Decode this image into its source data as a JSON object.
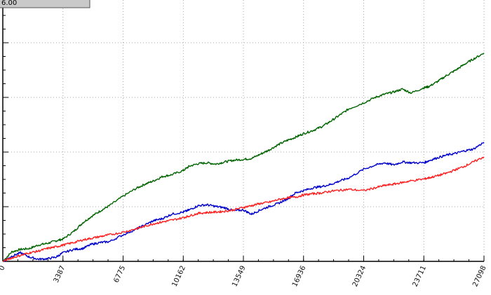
{
  "badge": {
    "text": "6.00"
  },
  "chart_data": {
    "type": "line",
    "title": "",
    "xlabel": "",
    "ylabel": "",
    "x_ticks": [
      0,
      3387,
      6775,
      10162,
      13549,
      16936,
      20324,
      23711,
      27098
    ],
    "xlim": [
      0,
      27098
    ],
    "ylim": [
      0,
      6.0
    ],
    "grid": true,
    "series": [
      {
        "color": "#006400",
        "x": [
          0,
          500,
          1000,
          1500,
          2000,
          2500,
          3000,
          3387,
          4000,
          4500,
          5000,
          5500,
          6000,
          6775,
          7500,
          8000,
          8500,
          9000,
          9500,
          10162,
          10500,
          11000,
          11500,
          12000,
          12500,
          13000,
          13549,
          14000,
          14500,
          15000,
          15500,
          16000,
          16500,
          16936,
          17500,
          18000,
          18500,
          19000,
          19500,
          20324,
          21000,
          21500,
          22000,
          22500,
          23000,
          23711,
          24000,
          24500,
          25000,
          25500,
          26000,
          26500,
          27098
        ],
        "values": [
          0.0,
          0.22,
          0.28,
          0.3,
          0.38,
          0.42,
          0.48,
          0.52,
          0.7,
          0.9,
          1.05,
          1.18,
          1.3,
          1.52,
          1.7,
          1.8,
          1.88,
          1.98,
          2.02,
          2.12,
          2.22,
          2.28,
          2.3,
          2.27,
          2.32,
          2.36,
          2.38,
          2.4,
          2.5,
          2.6,
          2.72,
          2.82,
          2.9,
          2.98,
          3.06,
          3.15,
          3.28,
          3.42,
          3.56,
          3.7,
          3.83,
          3.9,
          3.95,
          4.02,
          3.93,
          4.05,
          4.08,
          4.2,
          4.34,
          4.46,
          4.6,
          4.72,
          4.86
        ]
      },
      {
        "color": "#0000cc",
        "x": [
          0,
          500,
          1000,
          1500,
          2000,
          2500,
          3000,
          3387,
          4000,
          4500,
          5000,
          5500,
          6000,
          6775,
          7500,
          8000,
          8500,
          9000,
          9500,
          10162,
          10500,
          11000,
          11500,
          12000,
          12500,
          13000,
          13549,
          14000,
          14500,
          15000,
          15500,
          16000,
          16500,
          16936,
          17500,
          18000,
          18500,
          19000,
          19500,
          20324,
          21000,
          21500,
          22000,
          22500,
          23000,
          23711,
          24000,
          24500,
          25000,
          25500,
          26000,
          26500,
          27098
        ],
        "values": [
          0.0,
          0.12,
          0.2,
          0.1,
          0.05,
          0.06,
          0.1,
          0.2,
          0.28,
          0.3,
          0.4,
          0.44,
          0.46,
          0.62,
          0.75,
          0.85,
          0.95,
          1.0,
          1.1,
          1.15,
          1.2,
          1.3,
          1.32,
          1.28,
          1.25,
          1.18,
          1.2,
          1.1,
          1.2,
          1.28,
          1.35,
          1.45,
          1.6,
          1.65,
          1.72,
          1.75,
          1.8,
          1.88,
          1.95,
          2.15,
          2.25,
          2.3,
          2.25,
          2.32,
          2.3,
          2.3,
          2.35,
          2.42,
          2.48,
          2.52,
          2.58,
          2.62,
          2.78
        ]
      },
      {
        "color": "#ff2020",
        "x": [
          0,
          500,
          1000,
          1500,
          2000,
          2500,
          3000,
          3387,
          4000,
          4500,
          5000,
          5500,
          6000,
          6775,
          7500,
          8000,
          8500,
          9000,
          9500,
          10162,
          10500,
          11000,
          11500,
          12000,
          12500,
          13000,
          13549,
          14000,
          14500,
          15000,
          15500,
          16000,
          16500,
          16936,
          17500,
          18000,
          18500,
          19000,
          19500,
          20324,
          21000,
          21500,
          22000,
          22500,
          23000,
          23711,
          24000,
          24500,
          25000,
          25500,
          26000,
          26500,
          27098
        ],
        "values": [
          0.0,
          0.08,
          0.14,
          0.2,
          0.24,
          0.3,
          0.34,
          0.38,
          0.44,
          0.5,
          0.54,
          0.58,
          0.62,
          0.68,
          0.76,
          0.82,
          0.88,
          0.92,
          0.96,
          1.02,
          1.06,
          1.12,
          1.14,
          1.15,
          1.17,
          1.2,
          1.26,
          1.3,
          1.35,
          1.38,
          1.44,
          1.48,
          1.5,
          1.55,
          1.58,
          1.6,
          1.64,
          1.66,
          1.68,
          1.65,
          1.72,
          1.77,
          1.8,
          1.84,
          1.88,
          1.92,
          1.95,
          2.0,
          2.06,
          2.14,
          2.22,
          2.32,
          2.44
        ]
      }
    ]
  }
}
